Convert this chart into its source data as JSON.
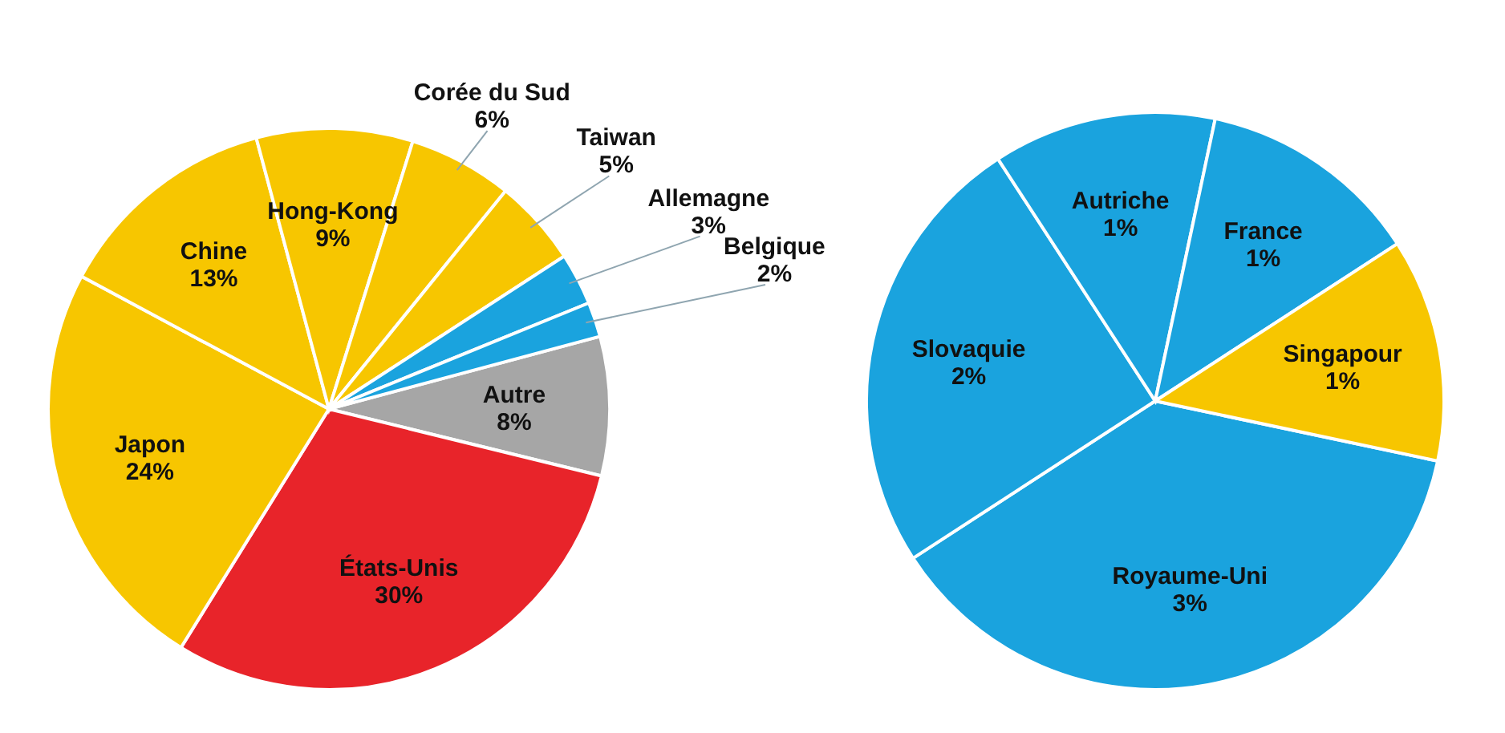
{
  "chart_data": [
    {
      "type": "pie",
      "categories": [
        "Autre",
        "États-Unis",
        "Japon",
        "Chine",
        "Hong-Kong",
        "Corée du Sud",
        "Taiwan",
        "Allemagne",
        "Belgique"
      ],
      "values": [
        8,
        30,
        24,
        13,
        9,
        6,
        5,
        3,
        2
      ],
      "colors": [
        "#a6a6a6",
        "#e8242a",
        "#f7c600",
        "#f7c600",
        "#f7c600",
        "#f7c600",
        "#f7c600",
        "#1aa3de",
        "#1aa3de"
      ],
      "value_labels": [
        "8%",
        "30%",
        "24%",
        "13%",
        "9%",
        "6%",
        "5%",
        "3%",
        "2%"
      ]
    },
    {
      "type": "pie",
      "categories": [
        "Royaume-Uni",
        "Slovaquie",
        "Autriche",
        "France",
        "Singapour"
      ],
      "values": [
        3,
        2,
        1,
        1,
        1
      ],
      "colors": [
        "#1aa3de",
        "#1aa3de",
        "#1aa3de",
        "#1aa3de",
        "#f7c600"
      ],
      "value_labels": [
        "3%",
        "2%",
        "1%",
        "1%",
        "1%"
      ]
    }
  ]
}
